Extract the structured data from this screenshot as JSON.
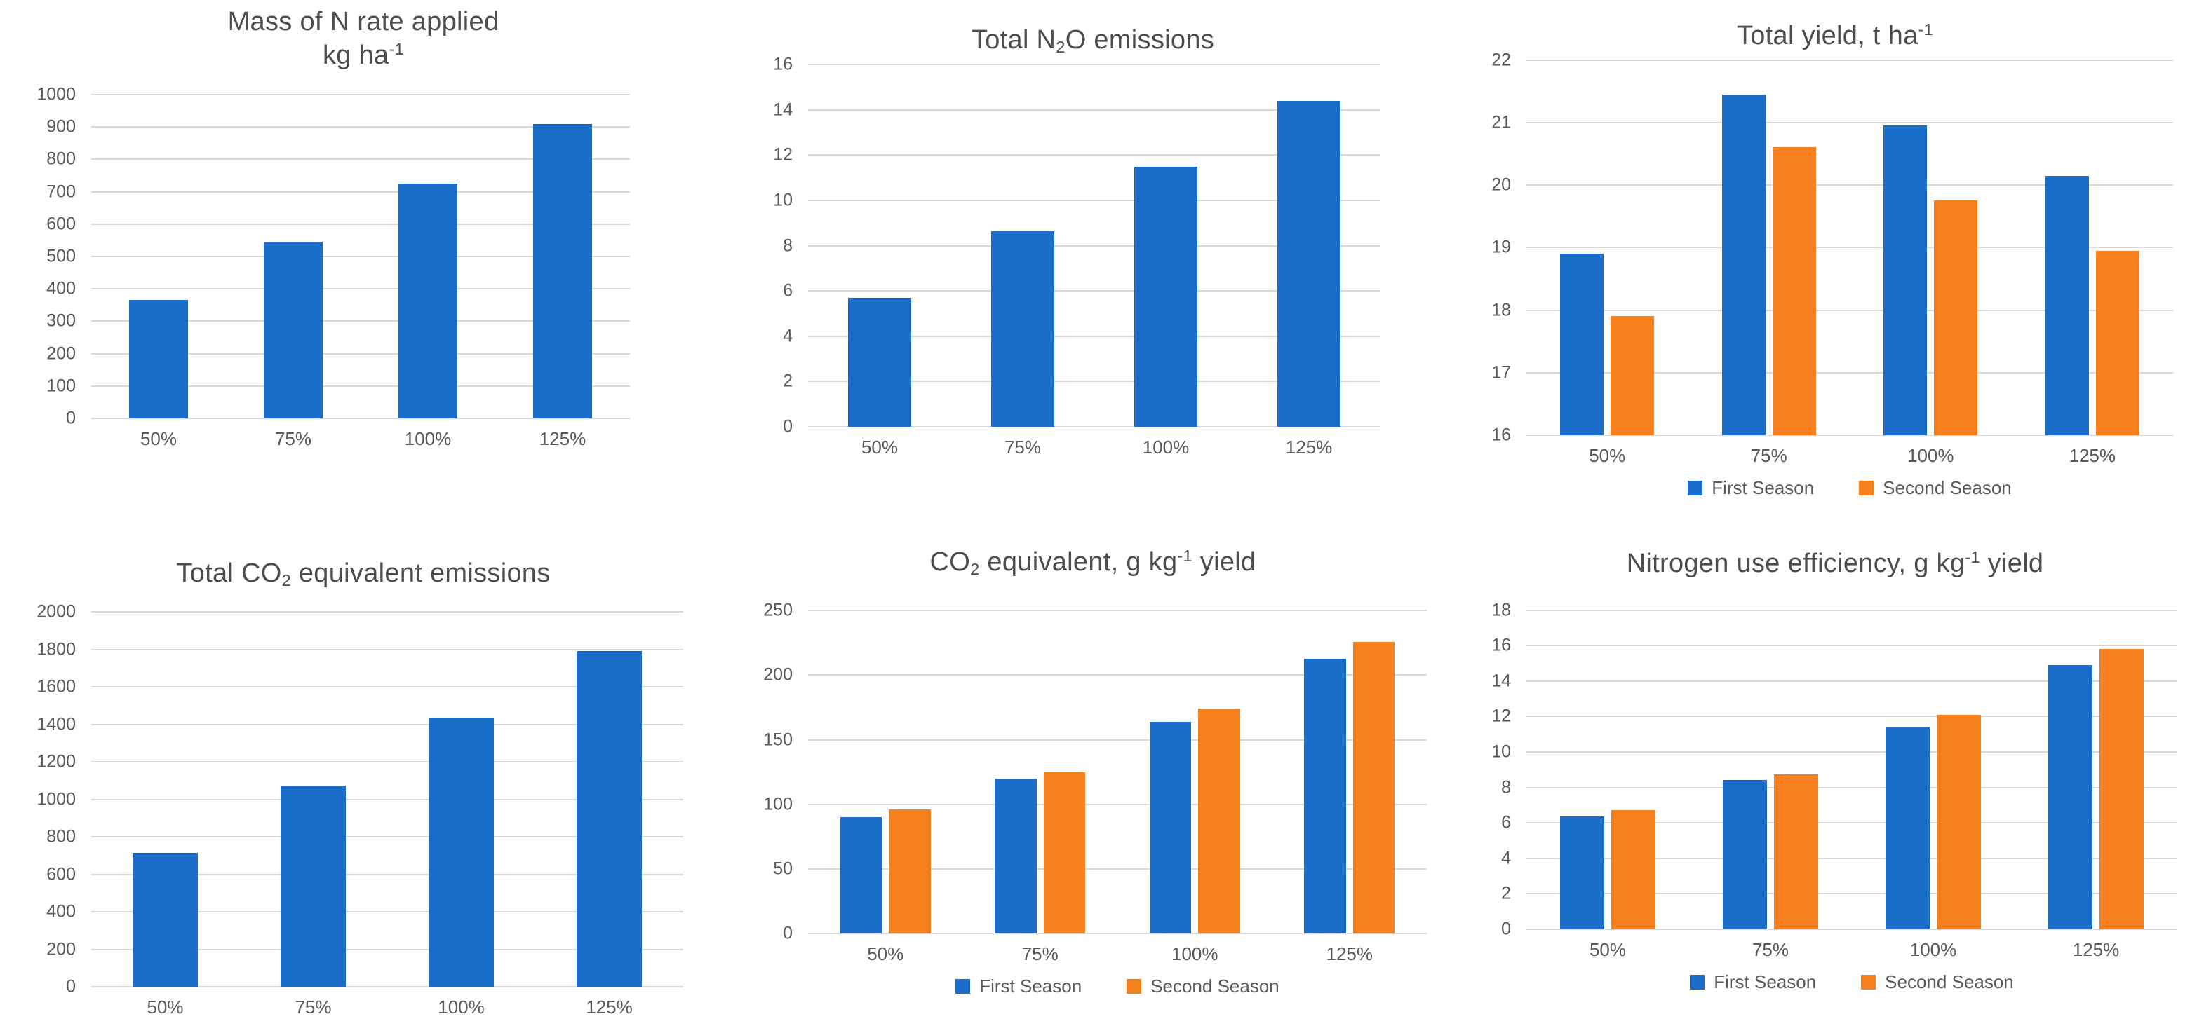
{
  "colors": {
    "first_season": "#1b6ec8",
    "second_season": "#f7801e",
    "gridline": "#dadada",
    "axis_text": "#595959",
    "title_text": "#4d4d4d"
  },
  "chart_data": [
    {
      "id": "mass-n-rate-applied",
      "type": "bar",
      "title_plain": "Mass of N rate applied kg ha-1",
      "title_lines": [
        [
          {
            "t": "Mass of N rate applied"
          }
        ],
        [
          {
            "t": "kg ha"
          },
          {
            "t": "-1",
            "style": "sup"
          }
        ]
      ],
      "categories": [
        "50%",
        "75%",
        "100%",
        "125%"
      ],
      "series": [
        {
          "name": "First Season",
          "color": "first_season",
          "values": [
            365,
            545,
            725,
            910
          ]
        }
      ],
      "ylim": [
        0,
        1000
      ],
      "ytick_step": 100,
      "grid": true,
      "legend": false
    },
    {
      "id": "total-n2o-emissions",
      "type": "bar",
      "title_plain": "Total N2O emissions",
      "title_lines": [
        [
          {
            "t": "Total N"
          },
          {
            "t": "2",
            "style": "sub"
          },
          {
            "t": "O emissions"
          }
        ]
      ],
      "categories": [
        "50%",
        "75%",
        "100%",
        "125%"
      ],
      "series": [
        {
          "name": "First Season",
          "color": "first_season",
          "values": [
            5.7,
            8.65,
            11.5,
            14.4
          ]
        }
      ],
      "ylim": [
        0,
        16
      ],
      "ytick_step": 2,
      "grid": true,
      "legend": false
    },
    {
      "id": "total-yield",
      "type": "bar",
      "title_plain": "Total yield, t ha-1",
      "title_lines": [
        [
          {
            "t": "Total yield, t ha"
          },
          {
            "t": "-1",
            "style": "sup"
          }
        ]
      ],
      "categories": [
        "50%",
        "75%",
        "100%",
        "125%"
      ],
      "series": [
        {
          "name": "First Season",
          "color": "first_season",
          "values": [
            18.9,
            21.45,
            20.95,
            20.15
          ]
        },
        {
          "name": "Second Season",
          "color": "second_season",
          "values": [
            17.9,
            20.6,
            19.75,
            18.95
          ]
        }
      ],
      "ylim": [
        16,
        22
      ],
      "ytick_step": 1,
      "grid": true,
      "legend": true,
      "legend_position": "bottom"
    },
    {
      "id": "total-co2-equivalent-emissions",
      "type": "bar",
      "title_plain": "Total CO2 equivalent emissions",
      "title_lines": [
        [
          {
            "t": "Total CO"
          },
          {
            "t": "2",
            "style": "sub"
          },
          {
            "t": " equivalent emissions"
          }
        ]
      ],
      "categories": [
        "50%",
        "75%",
        "100%",
        "125%"
      ],
      "series": [
        {
          "name": "First Season",
          "color": "first_season",
          "values": [
            715,
            1075,
            1435,
            1790
          ]
        }
      ],
      "ylim": [
        0,
        2000
      ],
      "ytick_step": 200,
      "grid": true,
      "legend": false
    },
    {
      "id": "co2-equivalent-per-yield",
      "type": "bar",
      "title_plain": "CO2 equivalent, g kg-1 yield",
      "title_lines": [
        [
          {
            "t": "CO"
          },
          {
            "t": "2",
            "style": "sub"
          },
          {
            "t": " equivalent, g kg"
          },
          {
            "t": "-1",
            "style": "sup"
          },
          {
            "t": " yield"
          }
        ]
      ],
      "categories": [
        "50%",
        "75%",
        "100%",
        "125%"
      ],
      "series": [
        {
          "name": "First Season",
          "color": "first_season",
          "values": [
            90,
            120,
            164,
            213
          ]
        },
        {
          "name": "Second Season",
          "color": "second_season",
          "values": [
            96,
            125,
            174,
            226
          ]
        }
      ],
      "ylim": [
        0,
        250
      ],
      "ytick_step": 50,
      "grid": true,
      "legend": true,
      "legend_position": "bottom"
    },
    {
      "id": "nitrogen-use-efficiency",
      "type": "bar",
      "title_plain": "Nitrogen use efficiency, g kg-1 yield",
      "title_lines": [
        [
          {
            "t": "Nitrogen use efficiency, g kg"
          },
          {
            "t": "-1",
            "style": "sup"
          },
          {
            "t": " yield"
          }
        ]
      ],
      "categories": [
        "50%",
        "75%",
        "100%",
        "125%"
      ],
      "series": [
        {
          "name": "First Season",
          "color": "first_season",
          "values": [
            6.35,
            8.4,
            11.4,
            14.9
          ]
        },
        {
          "name": "Second Season",
          "color": "second_season",
          "values": [
            6.7,
            8.75,
            12.1,
            15.8
          ]
        }
      ],
      "ylim": [
        0,
        18
      ],
      "ytick_step": 2,
      "grid": true,
      "legend": true,
      "legend_position": "bottom"
    }
  ]
}
